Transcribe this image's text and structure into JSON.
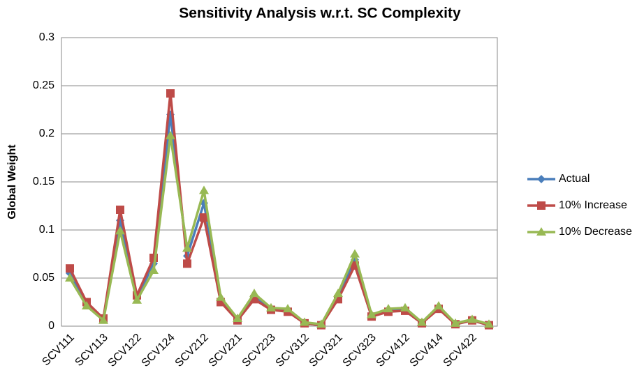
{
  "chart_data": {
    "type": "line",
    "title": "Sensitivity Analysis w.r.t. SC Complexity",
    "y_label": "Global Weight",
    "categories": [
      "SCV111",
      null,
      "SCV113",
      null,
      "SCV122",
      null,
      "SCV124",
      null,
      "SCV212",
      null,
      "SCV221",
      null,
      "SCV223",
      null,
      "SCV312",
      null,
      "SCV321",
      null,
      "SCV323",
      null,
      "SCV412",
      null,
      "SCV414",
      null,
      "SCV422",
      null
    ],
    "series": [
      {
        "name": "Actual",
        "color": "#4a7ebb",
        "marker": "diamond",
        "values": [
          0.055,
          0.024,
          0.007,
          0.11,
          0.03,
          0.065,
          0.22,
          0.073,
          0.128,
          0.028,
          0.007,
          0.031,
          0.018,
          0.016,
          0.003,
          0.001,
          0.031,
          0.069,
          0.011,
          0.017,
          0.017,
          0.003,
          0.019,
          0.002,
          0.006,
          0.001
        ]
      },
      {
        "name": "10% Increase",
        "color": "#be4b48",
        "marker": "square",
        "values": [
          0.06,
          0.025,
          0.008,
          0.121,
          0.032,
          0.071,
          0.242,
          0.065,
          0.113,
          0.025,
          0.006,
          0.028,
          0.017,
          0.015,
          0.003,
          0.001,
          0.028,
          0.063,
          0.01,
          0.015,
          0.016,
          0.003,
          0.018,
          0.002,
          0.006,
          0.001
        ]
      },
      {
        "name": "10% Decrease",
        "color": "#98b954",
        "marker": "triangle",
        "values": [
          0.05,
          0.021,
          0.006,
          0.099,
          0.027,
          0.058,
          0.198,
          0.081,
          0.141,
          0.03,
          0.008,
          0.034,
          0.019,
          0.018,
          0.004,
          0.002,
          0.034,
          0.075,
          0.012,
          0.018,
          0.019,
          0.004,
          0.021,
          0.003,
          0.007,
          0.002
        ]
      }
    ],
    "ylim": [
      0,
      0.3
    ],
    "yticks": [
      0,
      0.05,
      0.1,
      0.15,
      0.2,
      0.25,
      0.3
    ],
    "grid": true,
    "legend": "right"
  }
}
